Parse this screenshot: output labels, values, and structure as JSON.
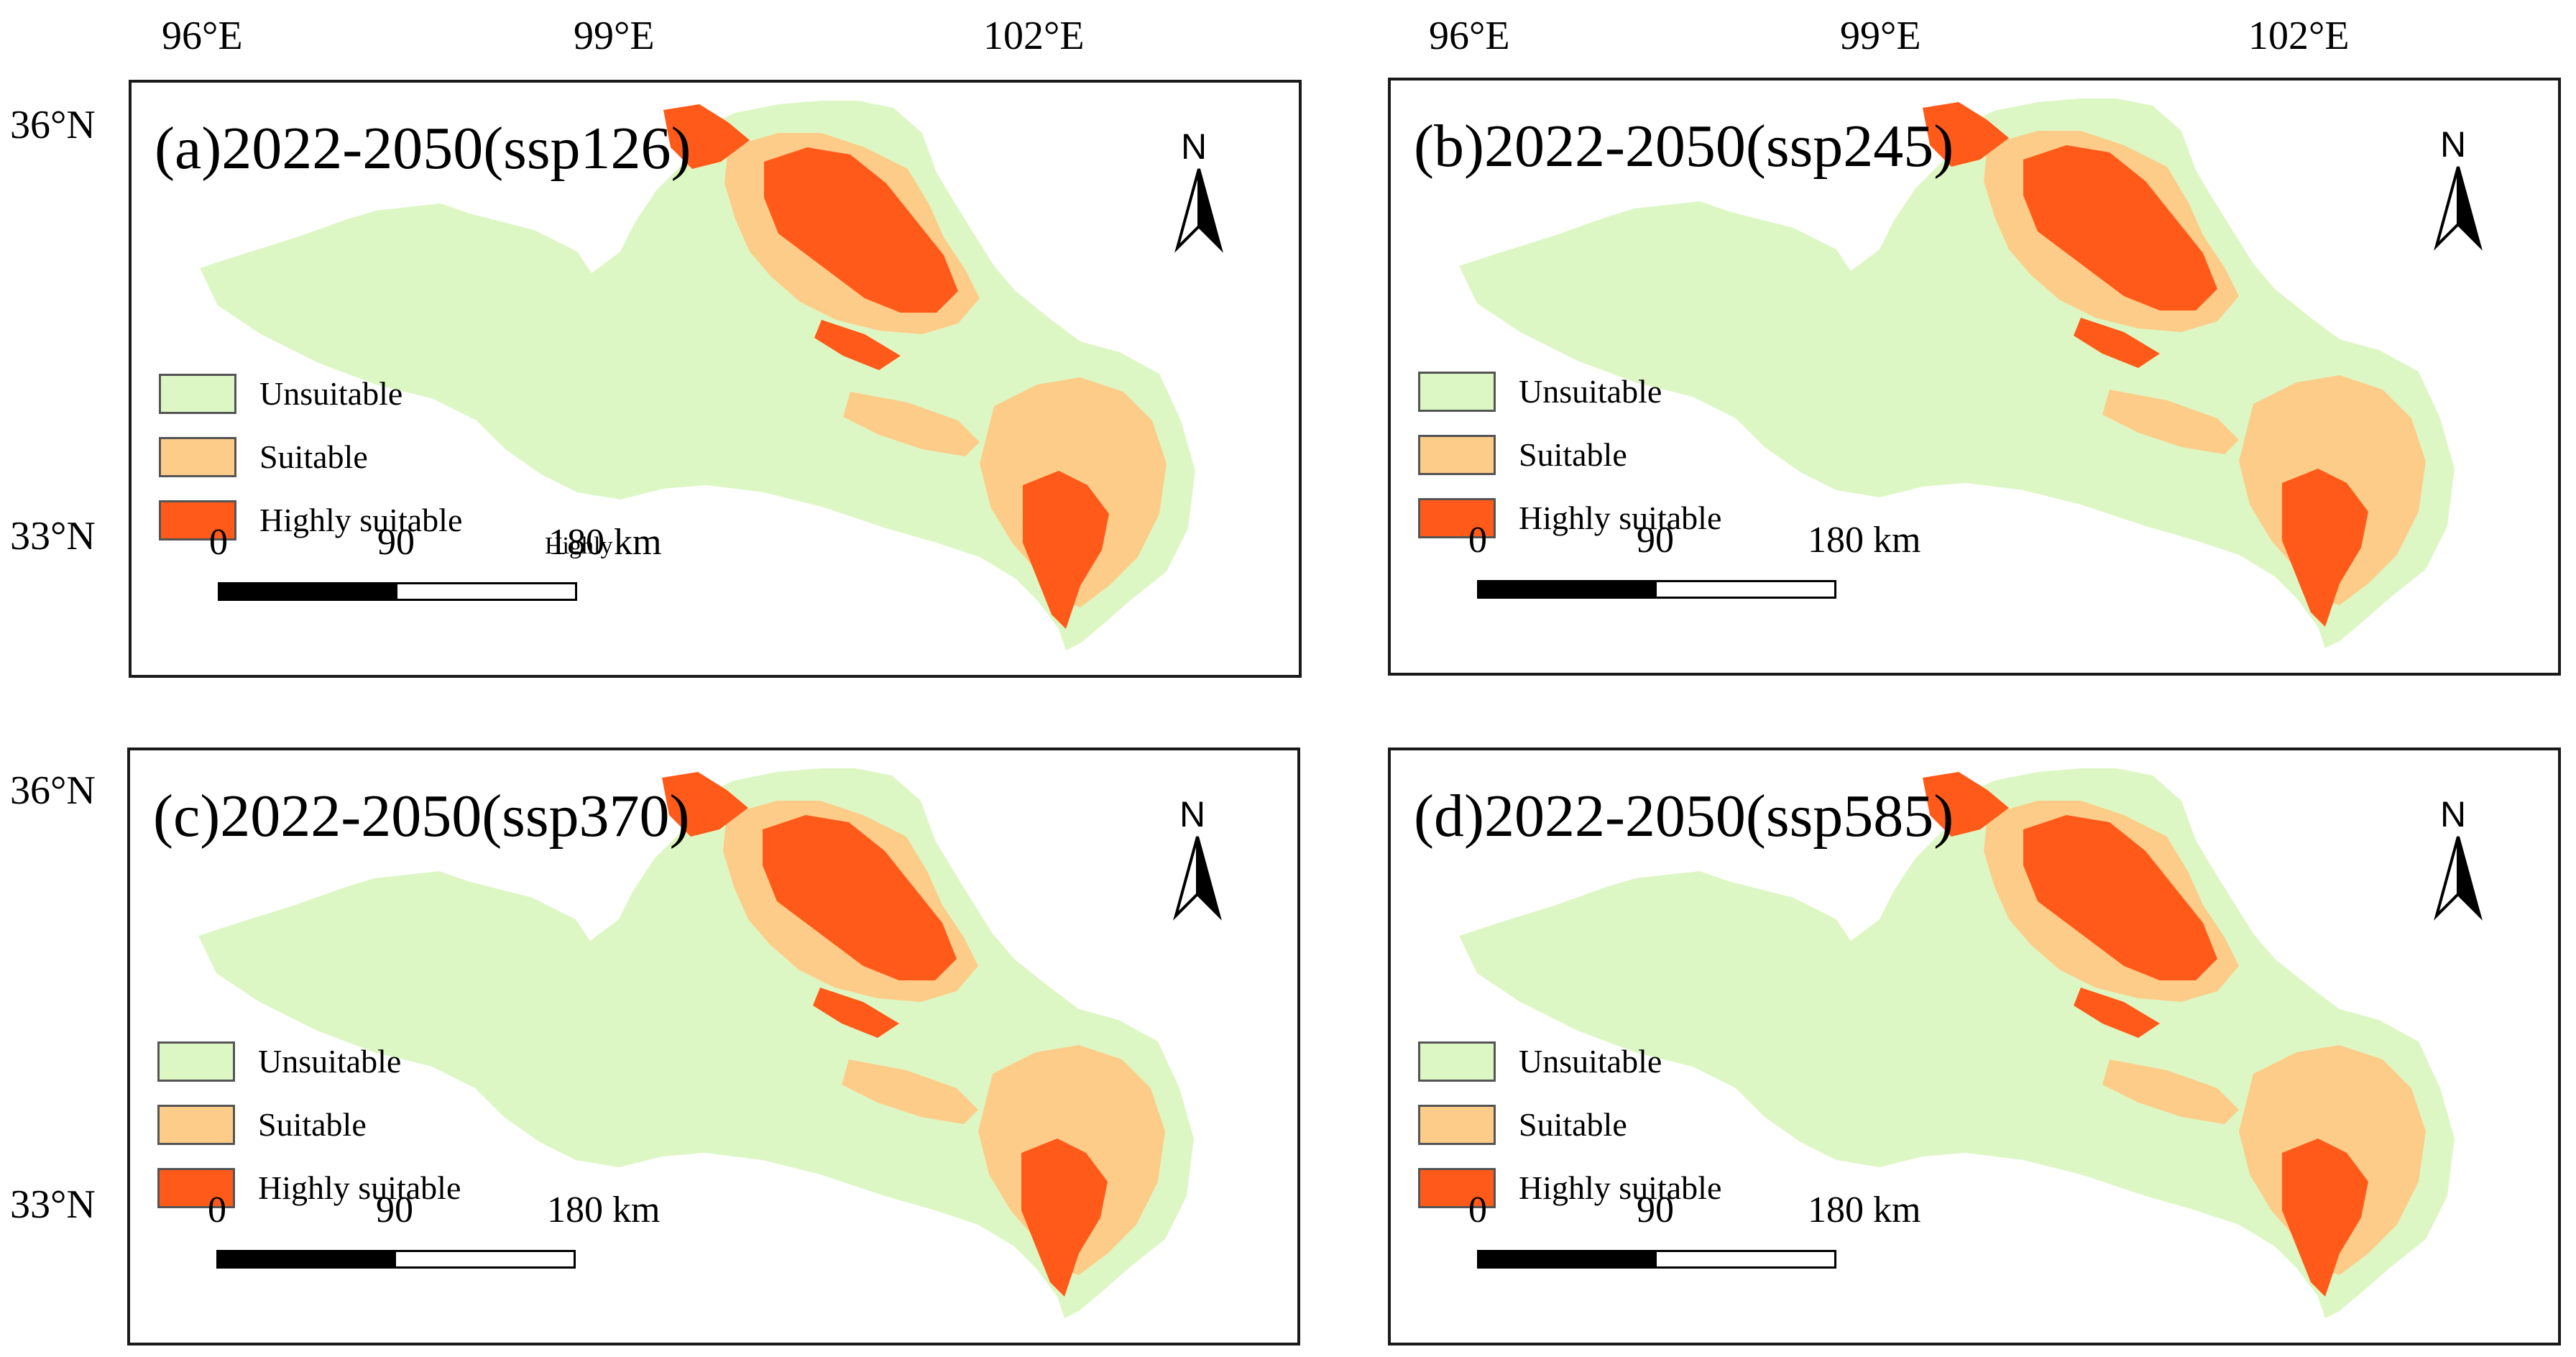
{
  "figure": {
    "panels": [
      {
        "id": "a",
        "title": "(a)2022-2050(ssp126)"
      },
      {
        "id": "b",
        "title": "(b)2022-2050(ssp245)"
      },
      {
        "id": "c",
        "title": "(c)2022-2050(ssp370)"
      },
      {
        "id": "d",
        "title": "(d)2022-2050(ssp585)"
      }
    ],
    "legend": {
      "unsuitable": "Unsuitable",
      "suitable": "Suitable",
      "highly": "Highly suitable"
    },
    "scale": {
      "s0": "0",
      "s1": "90",
      "s2": "180 km"
    },
    "north_label": "N",
    "stray_label": "Highly",
    "axes": {
      "lon": [
        "96°E",
        "99°E",
        "102°E"
      ],
      "lat": [
        "36°N",
        "33°N"
      ]
    },
    "colors": {
      "unsuitable": "#ddf7c4",
      "suitable": "#fdcc89",
      "highly": "#ff5a1a"
    }
  }
}
